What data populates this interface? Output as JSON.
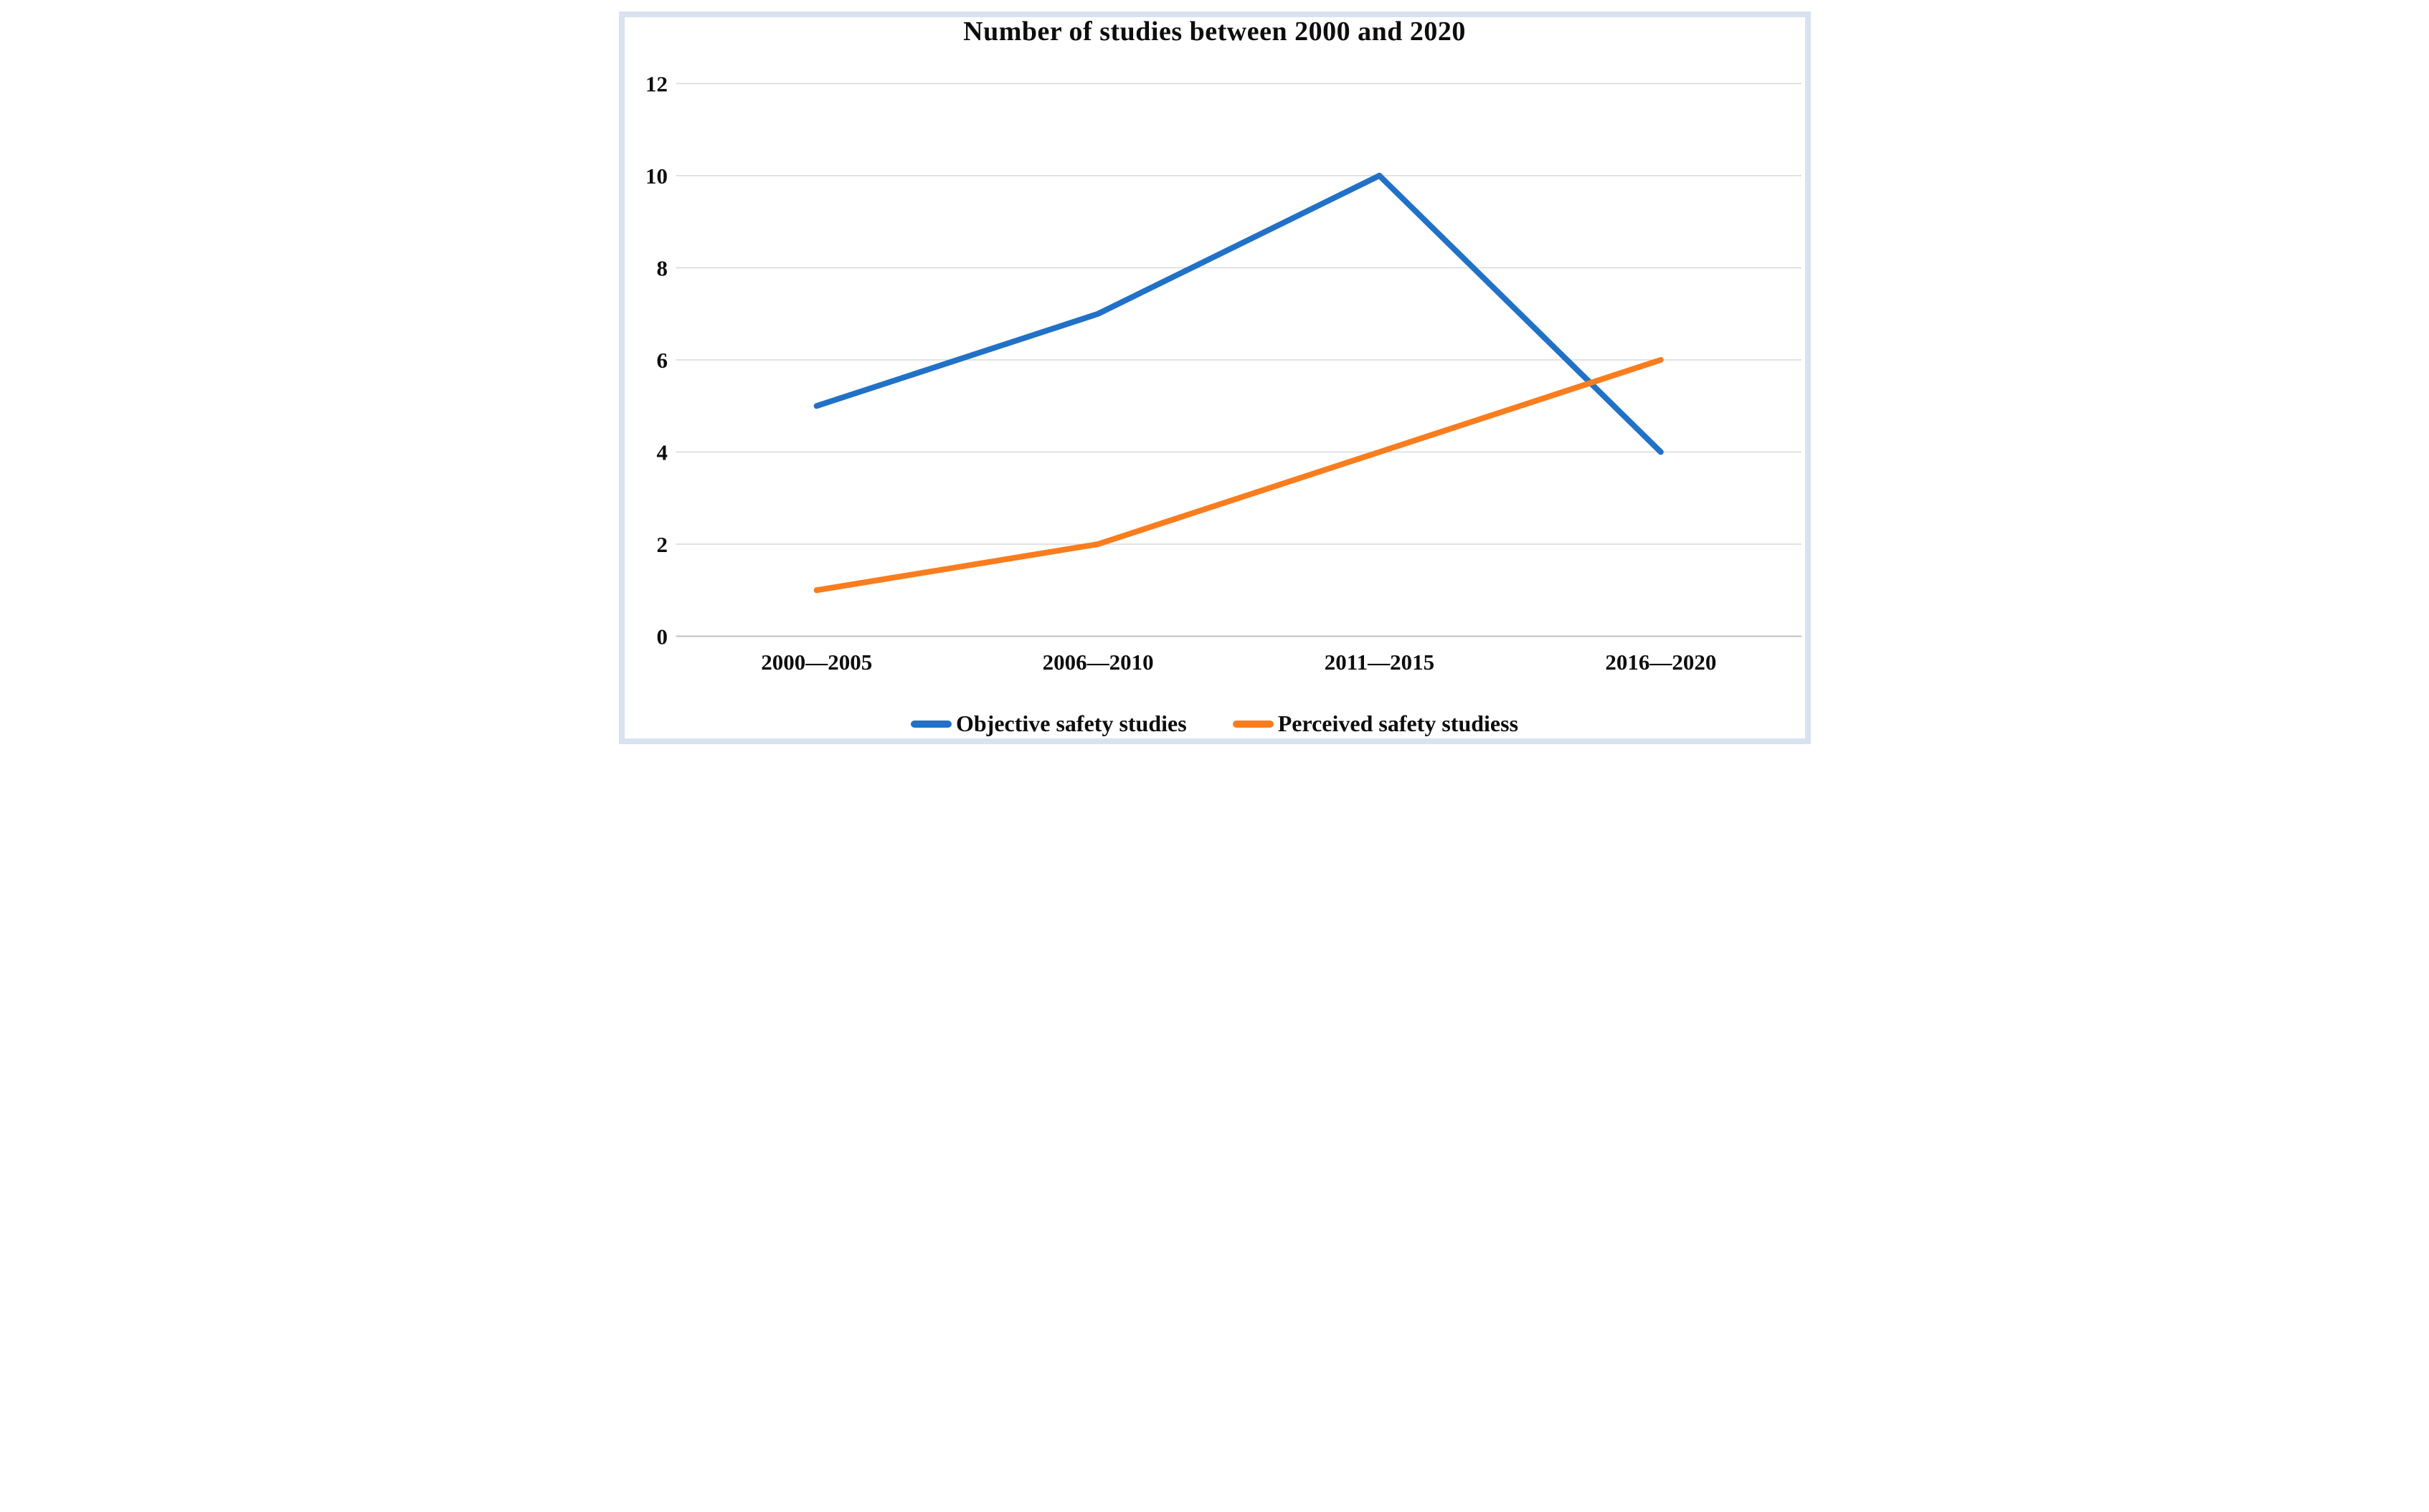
{
  "figure": {
    "border_color": "#d9e2f1",
    "background_color": "#ffffff",
    "text_color": "#0d0d0d"
  },
  "chart_data": {
    "type": "line",
    "title": "Number of studies between 2000 and 2020",
    "categories": [
      "2000—2005",
      "2006—2010",
      "2011—2015",
      "2016—2020"
    ],
    "series": [
      {
        "name": "Objective safety studies",
        "color": "#2171c7",
        "values": [
          5,
          7,
          10,
          4
        ]
      },
      {
        "name": "Perceived safety studiess",
        "color": "#f97d1e",
        "values": [
          1,
          2,
          4,
          6
        ]
      }
    ],
    "xlabel": "",
    "ylabel": "",
    "ylim": [
      0,
      12
    ],
    "yticks": [
      0,
      2,
      4,
      6,
      8,
      10,
      12
    ],
    "grid": true,
    "gridline_color": "#d9d9d9",
    "axisline_color": "#bfbfbf",
    "legend_position": "bottom"
  }
}
